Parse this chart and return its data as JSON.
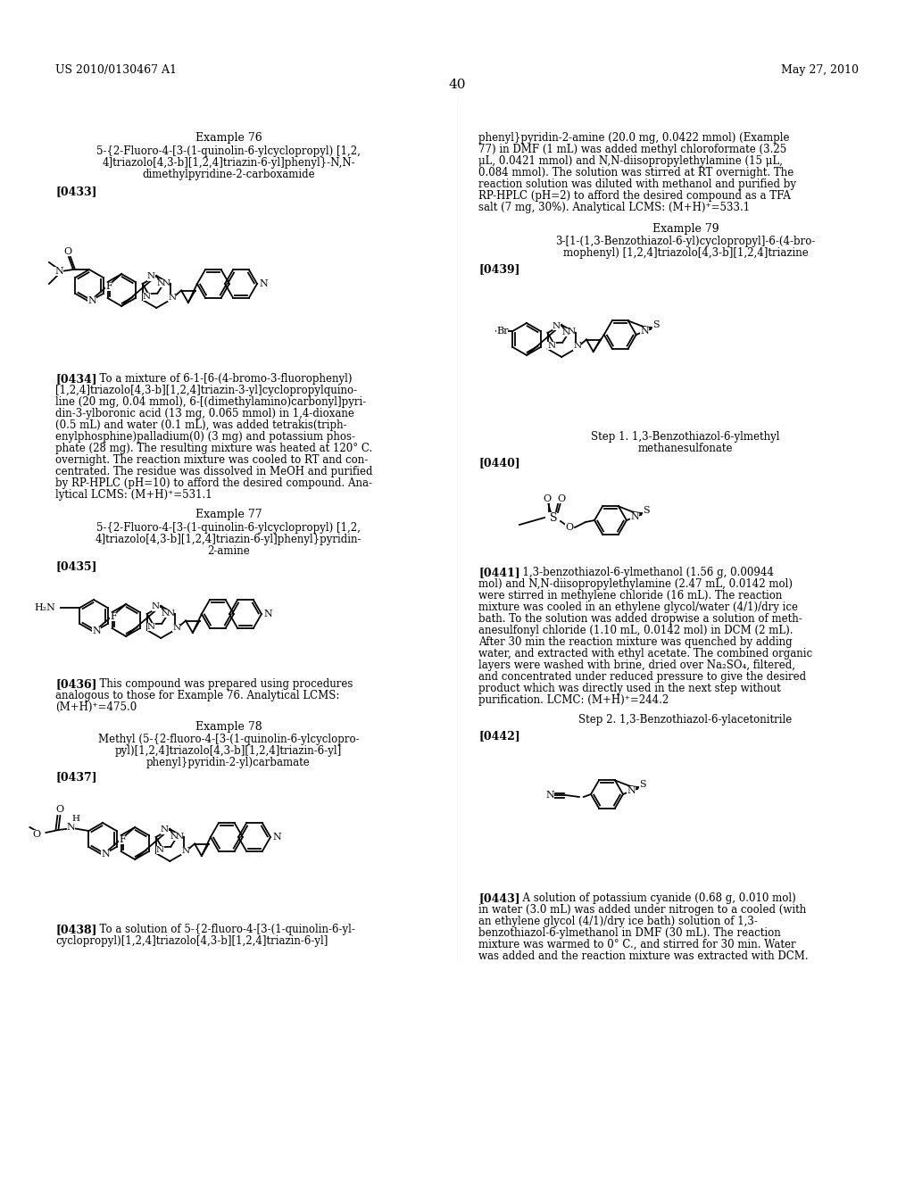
{
  "bg": "#ffffff",
  "header_left": "US 2010/0130467 A1",
  "header_right": "May 27, 2010",
  "page_num": "40"
}
